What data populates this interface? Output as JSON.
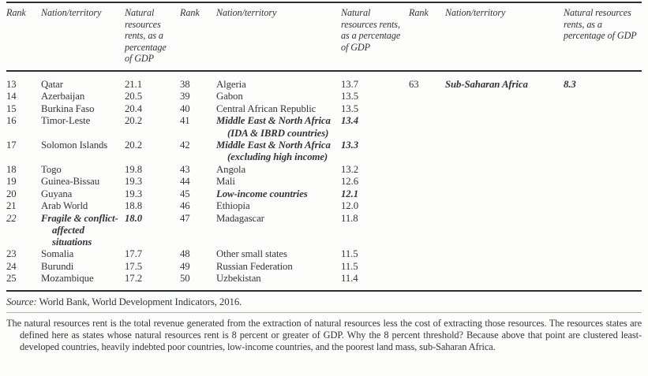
{
  "header": {
    "rank": "Rank",
    "nation": "Nation/territory",
    "value": "Natural resources rents, as a percentage of GDP"
  },
  "rows": [
    {
      "cells": [
        {
          "text": "13"
        },
        {
          "text": "Qatar"
        },
        {
          "text": "21.1"
        },
        {
          "text": "38"
        },
        {
          "text": "Algeria"
        },
        {
          "text": "13.7"
        },
        {
          "text": "63"
        },
        {
          "text": "Sub-Saharan Africa",
          "emph": true
        },
        {
          "text": "8.3",
          "emph": true
        }
      ]
    },
    {
      "cells": [
        {
          "text": "14"
        },
        {
          "text": "Azerbaijan"
        },
        {
          "text": "20.5"
        },
        {
          "text": "39"
        },
        {
          "text": "Gabon"
        },
        {
          "text": "13.5"
        },
        null,
        null,
        null
      ]
    },
    {
      "cells": [
        {
          "text": "15"
        },
        {
          "text": "Burkina Faso"
        },
        {
          "text": "20.4"
        },
        {
          "text": "40"
        },
        {
          "text": "Central African Republic"
        },
        {
          "text": "13.5"
        },
        null,
        null,
        null
      ]
    },
    {
      "cells": [
        {
          "text": "16"
        },
        {
          "text": "Timor-Leste"
        },
        {
          "text": "20.2"
        },
        {
          "text": "41"
        },
        {
          "text": "Middle East & North Africa (IDA & IBRD countries)",
          "emph": true
        },
        {
          "text": "13.4",
          "emph": true
        },
        null,
        null,
        null
      ]
    },
    {
      "cells": [
        {
          "text": "17"
        },
        {
          "text": "Solomon Islands"
        },
        {
          "text": "20.2"
        },
        {
          "text": "42"
        },
        {
          "text": "Middle East & North Africa (excluding high income)",
          "emph": true
        },
        {
          "text": "13.3",
          "emph": true
        },
        null,
        null,
        null
      ]
    },
    {
      "cells": [
        {
          "text": "18"
        },
        {
          "text": "Togo"
        },
        {
          "text": "19.8"
        },
        {
          "text": "43"
        },
        {
          "text": "Angola"
        },
        {
          "text": "13.2"
        },
        null,
        null,
        null
      ]
    },
    {
      "cells": [
        {
          "text": "19"
        },
        {
          "text": "Guinea-Bissau"
        },
        {
          "text": "19.3"
        },
        {
          "text": "44"
        },
        {
          "text": "Mali"
        },
        {
          "text": "12.6"
        },
        null,
        null,
        null
      ]
    },
    {
      "cells": [
        {
          "text": "20"
        },
        {
          "text": "Guyana"
        },
        {
          "text": "19.3"
        },
        {
          "text": "45"
        },
        {
          "text": "Low-income countries",
          "emph": true
        },
        {
          "text": "12.1",
          "emph": true
        },
        null,
        null,
        null
      ]
    },
    {
      "cells": [
        {
          "text": "21"
        },
        {
          "text": "Arab World"
        },
        {
          "text": "18.8"
        },
        {
          "text": "46"
        },
        {
          "text": "Ethiopia"
        },
        {
          "text": "12.0"
        },
        null,
        null,
        null
      ]
    },
    {
      "cells": [
        {
          "text": "22",
          "italic": true
        },
        {
          "text": "Fragile & conflict-affected situations",
          "emph": true
        },
        {
          "text": "18.0",
          "emph": true
        },
        {
          "text": "47"
        },
        {
          "text": "Madagascar"
        },
        {
          "text": "11.8"
        },
        null,
        null,
        null
      ]
    },
    {
      "cells": [
        {
          "text": "23"
        },
        {
          "text": "Somalia"
        },
        {
          "text": "17.7"
        },
        {
          "text": "48"
        },
        {
          "text": "Other small states"
        },
        {
          "text": "11.5"
        },
        null,
        null,
        null
      ]
    },
    {
      "cells": [
        {
          "text": "24"
        },
        {
          "text": "Burundi"
        },
        {
          "text": "17.5"
        },
        {
          "text": "49"
        },
        {
          "text": "Russian Federation"
        },
        {
          "text": "11.5"
        },
        null,
        null,
        null
      ]
    },
    {
      "cells": [
        {
          "text": "25"
        },
        {
          "text": "Mozambique"
        },
        {
          "text": "17.2"
        },
        {
          "text": "50"
        },
        {
          "text": "Uzbekistan"
        },
        {
          "text": "11.4"
        },
        null,
        null,
        null
      ]
    }
  ],
  "source": {
    "label": "Source:",
    "text": "World Bank, World Development Indicators, 2016."
  },
  "footnote": "The natural resources rent is the total revenue generated from the extraction of natural resources less the cost of extracting those resources. The resources states are defined here as states whose natural resources rent is 8 percent or greater of GDP. Why the 8 percent threshold? Because above that point are clustered least-developed countries, heavily indebted poor countries, low-income countries, and the poorest land mass, sub-Saharan Africa.",
  "colors": {
    "text": "#31353b",
    "rule_dark": "#2b2e32",
    "rule_light": "#b2b2ae",
    "background": "#fdfdfb"
  }
}
